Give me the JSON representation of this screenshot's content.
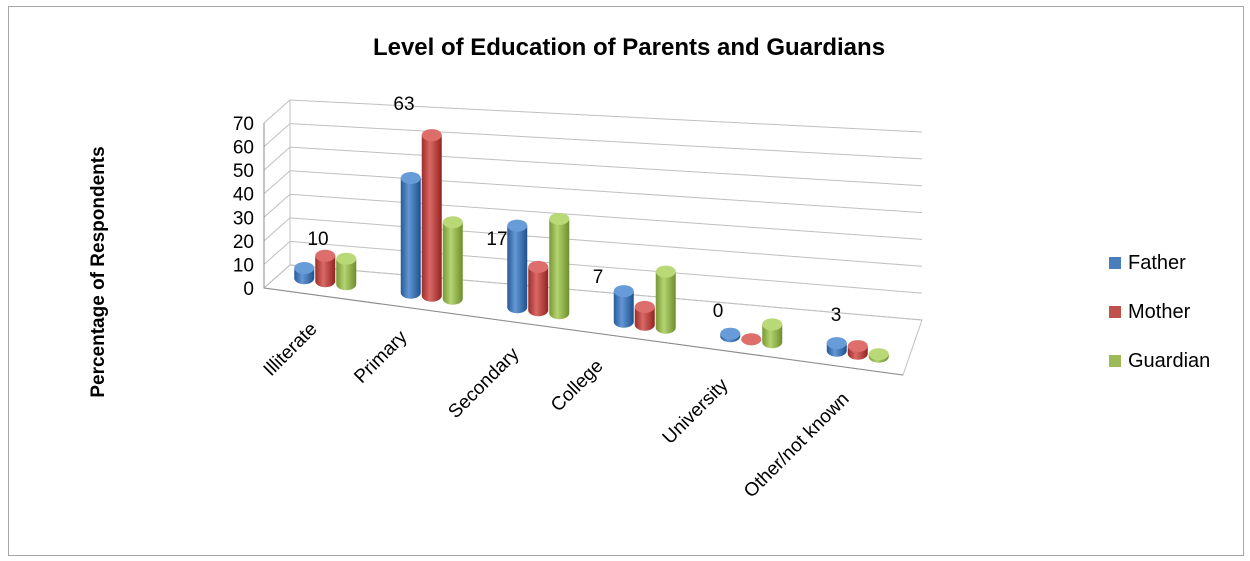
{
  "chart_data": {
    "type": "bar",
    "style": "3d-cylinder-clustered",
    "title": "Level of Education of Parents and Guardians",
    "xlabel": "",
    "ylabel": "Percentage of Respondents",
    "ylim": [
      0,
      70
    ],
    "yticks": [
      "0",
      "10",
      "20",
      "30",
      "40",
      "50",
      "60",
      "70"
    ],
    "categories": [
      "Illiterate",
      "Primary",
      "Secondary",
      "College",
      "University",
      "Other/not known"
    ],
    "series": [
      {
        "name": "Father",
        "color": "#4a7ebb",
        "values": [
          4,
          45,
          32,
          12,
          1,
          3
        ]
      },
      {
        "name": "Mother",
        "color": "#c0504d",
        "values": [
          10,
          63,
          17,
          7,
          0,
          3
        ]
      },
      {
        "name": "Guardian",
        "color": "#9bbb59",
        "values": [
          10,
          30,
          37,
          22,
          7,
          1
        ]
      }
    ],
    "data_labels": [
      {
        "category": 0,
        "text": "10"
      },
      {
        "category": 1,
        "text": "63"
      },
      {
        "category": 2,
        "text": "17"
      },
      {
        "category": 3,
        "text": "7"
      },
      {
        "category": 4,
        "text": "0"
      },
      {
        "category": 5,
        "text": "3"
      }
    ],
    "grid": true,
    "legend_position": "right"
  }
}
